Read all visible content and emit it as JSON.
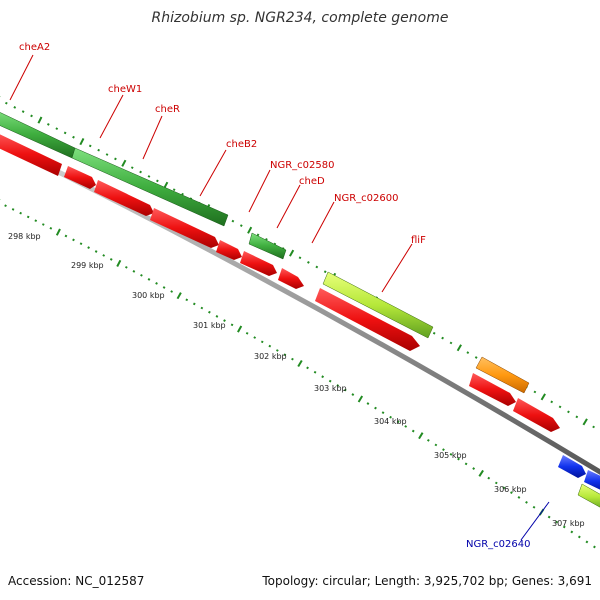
{
  "title": "Rhizobium sp. NGR234, complete genome",
  "accession_label": "Accession: NC_012587",
  "summary_label": "Topology: circular; Length: 3,925,702 bp; Genes: 3,691",
  "colors": {
    "label_red": "#cc0000",
    "label_blue": "#0000aa",
    "tick_green": "#228b22",
    "gene_red": "#ee1111",
    "gene_green": "#44bb44",
    "gene_lime": "#aaee33",
    "gene_orange": "#ff9911",
    "gene_blue": "#1133ee",
    "backbone": "#888888"
  },
  "scale_labels": [
    "298 kbp",
    "299 kbp",
    "300 kbp",
    "301 kbp",
    "302 kbp",
    "303 kbp",
    "304 kbp",
    "305 kbp",
    "306 kbp",
    "307 kbp"
  ],
  "gene_labels": [
    "cheA2",
    "cheW1",
    "cheR",
    "cheB2",
    "NGR_c02580",
    "cheD",
    "NGR_c02600",
    "fliF",
    "NGR_c02640"
  ]
}
